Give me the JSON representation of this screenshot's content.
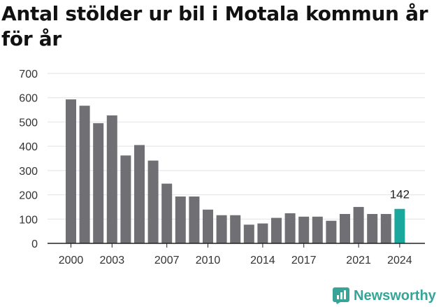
{
  "title": "Antal stölder ur bil i Motala kommun år för år",
  "brand": {
    "name": "Newsworthy",
    "icon": "newsworthy-logo-icon",
    "color": "#36a597"
  },
  "colors": {
    "bar": "#6f6f74",
    "highlight": "#1aa89c",
    "grid": "#e2e2e2",
    "axis": "#222222"
  },
  "chart_data": {
    "type": "bar",
    "title": "Antal stölder ur bil i Motala kommun år för år",
    "xlabel": "",
    "ylabel": "",
    "ylim": [
      0,
      700
    ],
    "yticks": [
      0,
      100,
      200,
      300,
      400,
      500,
      600,
      700
    ],
    "categories": [
      2000,
      2001,
      2002,
      2003,
      2004,
      2005,
      2006,
      2007,
      2008,
      2009,
      2010,
      2011,
      2012,
      2013,
      2014,
      2015,
      2016,
      2017,
      2018,
      2019,
      2020,
      2021,
      2022,
      2023,
      2024
    ],
    "xticks": [
      2000,
      2003,
      2007,
      2010,
      2014,
      2017,
      2021,
      2024
    ],
    "values": [
      593,
      567,
      495,
      527,
      362,
      405,
      341,
      246,
      193,
      193,
      139,
      116,
      116,
      77,
      82,
      105,
      124,
      110,
      110,
      93,
      121,
      150,
      121,
      121,
      142
    ],
    "highlight_index": 24,
    "data_labels": [
      {
        "category": 2024,
        "text": "142"
      }
    ],
    "grid": true,
    "legend": "none"
  }
}
